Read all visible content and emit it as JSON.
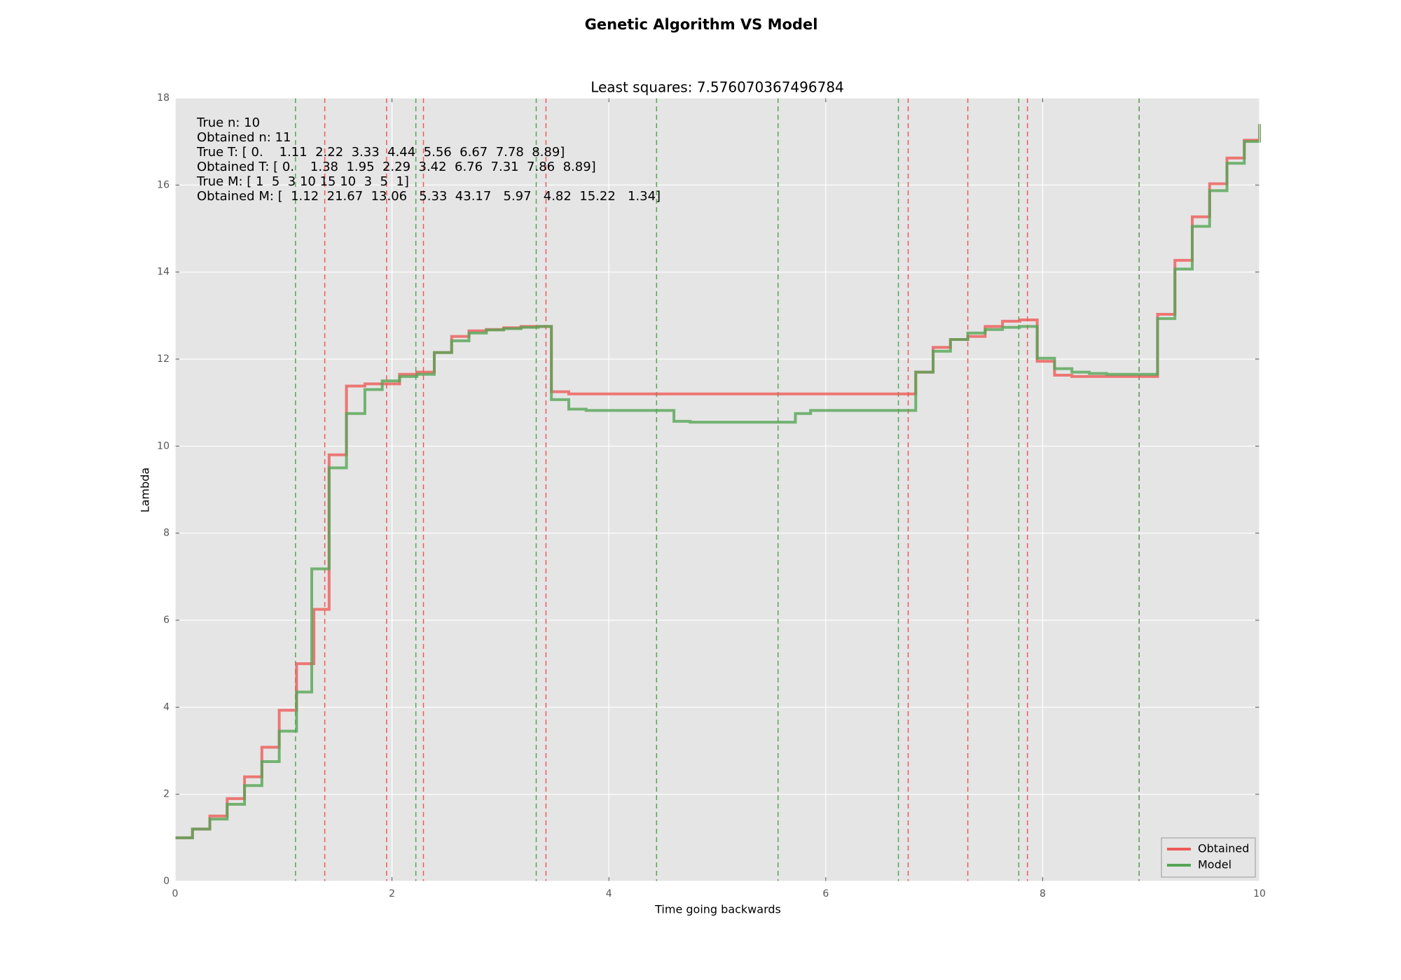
{
  "chart_data": {
    "type": "step",
    "title": "Genetic Algorithm VS Model",
    "subtitle": "Least squares: 7.576070367496784",
    "x_label": "Time going backwards",
    "y_label": "Lambda",
    "annotations": [
      "True n: 10",
      "Obtained n: 11",
      "True T: [ 0.    1.11  2.22  3.33  4.44  5.56  6.67  7.78  8.89]",
      "Obtained T: [ 0.    1.38  1.95  2.29  3.42  6.76  7.31  7.86  8.89]",
      "True M: [ 1  5  3 10 15 10  3  5  1]",
      "Obtained M: [  1.12  21.67  13.06   5.33  43.17   5.97   4.82  15.22   1.34]"
    ],
    "xlim": [
      0,
      10
    ],
    "ylim": [
      0,
      18
    ],
    "xticks": [
      0,
      2,
      4,
      6,
      8,
      10
    ],
    "yticks": [
      0,
      2,
      4,
      6,
      8,
      10,
      12,
      14,
      16,
      18
    ],
    "grid": true,
    "legend": "lower right",
    "series": [
      {
        "name": "Obtained",
        "color": "#ee5a58",
        "x": [
          0,
          0.16,
          0.32,
          0.48,
          0.64,
          0.8,
          0.96,
          1.12,
          1.28,
          1.42,
          1.58,
          1.75,
          2.07,
          2.23,
          2.39,
          2.55,
          2.71,
          2.87,
          3.03,
          3.19,
          3.47,
          3.63,
          6.83,
          6.99,
          7.15,
          7.31,
          7.47,
          7.63,
          7.79,
          7.95,
          8.11,
          8.27,
          9.06,
          9.22,
          9.38,
          9.54,
          9.7,
          9.86,
          10
        ],
        "values": [
          1.0,
          1.2,
          1.5,
          1.9,
          2.4,
          3.08,
          3.93,
          5.0,
          6.25,
          9.8,
          11.38,
          11.43,
          11.65,
          11.7,
          12.15,
          12.52,
          12.65,
          12.68,
          12.72,
          12.75,
          11.25,
          11.2,
          11.7,
          12.27,
          12.45,
          12.52,
          12.75,
          12.87,
          12.9,
          11.95,
          11.63,
          11.6,
          13.03,
          14.27,
          15.27,
          16.03,
          16.62,
          17.03,
          17.4
        ],
        "breakpoints": [
          1.38,
          1.95,
          2.29,
          3.42,
          6.76,
          7.31,
          7.86,
          8.89
        ]
      },
      {
        "name": "Model",
        "color": "#55a555",
        "x": [
          0,
          0.16,
          0.32,
          0.48,
          0.64,
          0.8,
          0.96,
          1.12,
          1.26,
          1.42,
          1.58,
          1.75,
          1.91,
          2.07,
          2.23,
          2.39,
          2.55,
          2.71,
          2.87,
          3.03,
          3.19,
          3.35,
          3.47,
          3.63,
          3.79,
          4.6,
          4.75,
          5.72,
          5.86,
          6.83,
          6.99,
          7.15,
          7.31,
          7.47,
          7.63,
          7.79,
          7.95,
          8.11,
          8.27,
          8.43,
          8.59,
          9.06,
          9.22,
          9.38,
          9.54,
          9.7,
          9.86,
          10
        ],
        "values": [
          1.0,
          1.2,
          1.43,
          1.77,
          2.2,
          2.75,
          3.45,
          4.35,
          7.18,
          9.5,
          10.75,
          11.3,
          11.5,
          11.6,
          11.65,
          12.15,
          12.42,
          12.6,
          12.67,
          12.7,
          12.73,
          12.75,
          11.07,
          10.85,
          10.82,
          10.57,
          10.55,
          10.75,
          10.82,
          11.7,
          12.18,
          12.45,
          12.6,
          12.68,
          12.73,
          12.75,
          12.02,
          11.78,
          11.7,
          11.67,
          11.65,
          12.93,
          14.07,
          15.05,
          15.87,
          16.5,
          17.0,
          17.4
        ],
        "breakpoints": [
          1.11,
          2.22,
          3.33,
          4.44,
          5.56,
          6.67,
          7.78,
          8.89
        ]
      }
    ]
  }
}
